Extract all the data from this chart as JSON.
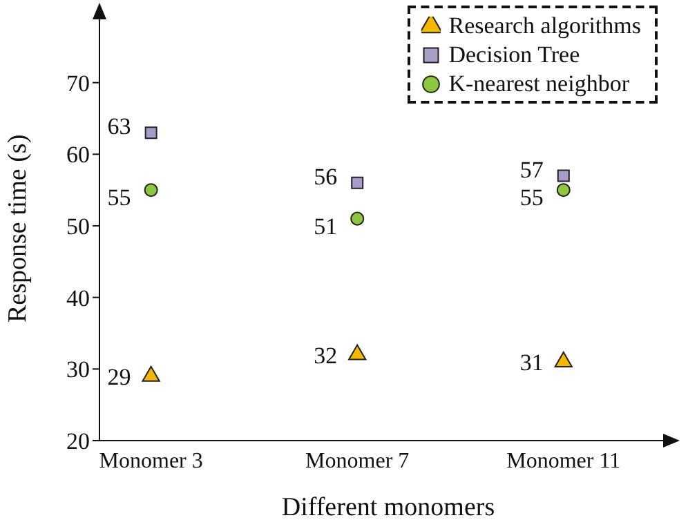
{
  "chart_data": {
    "type": "scatter",
    "xlabel": "Different monomers",
    "ylabel": "Response time (s)",
    "categories": [
      "Monomer 3",
      "Monomer 7",
      "Monomer 11"
    ],
    "series": [
      {
        "name": "Research algorithms",
        "color": "#f5b700",
        "marker": "triangle",
        "values": [
          29,
          32,
          31
        ]
      },
      {
        "name": "Decision Tree",
        "color": "#a99bcb",
        "marker": "square",
        "values": [
          63,
          56,
          57
        ]
      },
      {
        "name": "K-nearest neighbor",
        "color": "#8dc63f",
        "marker": "circle",
        "values": [
          55,
          51,
          55
        ]
      }
    ],
    "ylim": [
      20,
      80
    ],
    "yticks": [
      20,
      30,
      40,
      50,
      60,
      70
    ],
    "grid": false,
    "legend": "top right",
    "data_labels": true
  }
}
